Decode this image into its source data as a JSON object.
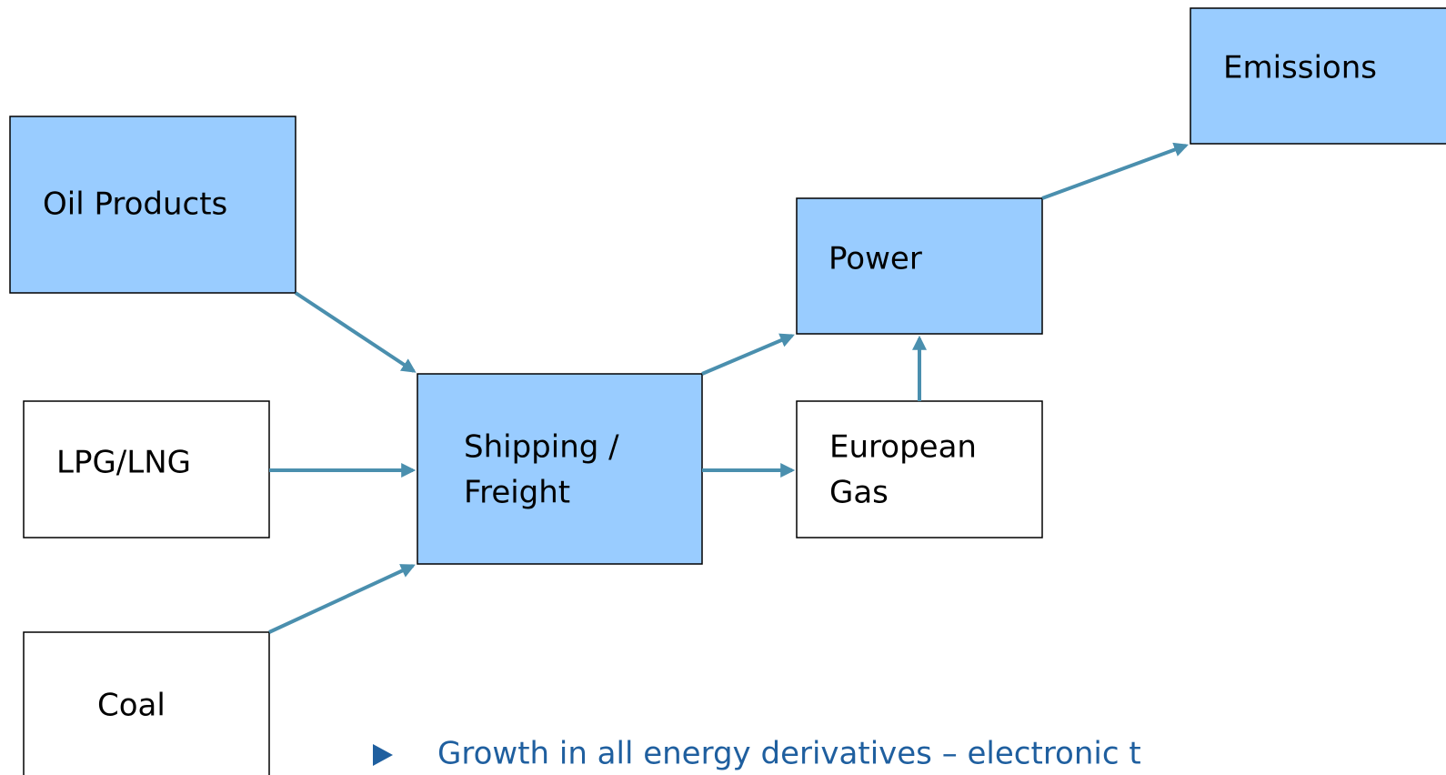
{
  "nodes": [
    {
      "lines": [
        "Oil Products"
      ]
    },
    {
      "lines": [
        "LPG/LNG"
      ]
    },
    {
      "lines": [
        "Coal"
      ]
    },
    {
      "lines": [
        "Shipping /",
        "Freight"
      ]
    },
    {
      "lines": [
        "European",
        "Gas"
      ]
    },
    {
      "lines": [
        "Power"
      ]
    },
    {
      "lines": [
        "Emissions"
      ]
    }
  ],
  "bullet": "Growth in all energy derivatives – electronic t"
}
